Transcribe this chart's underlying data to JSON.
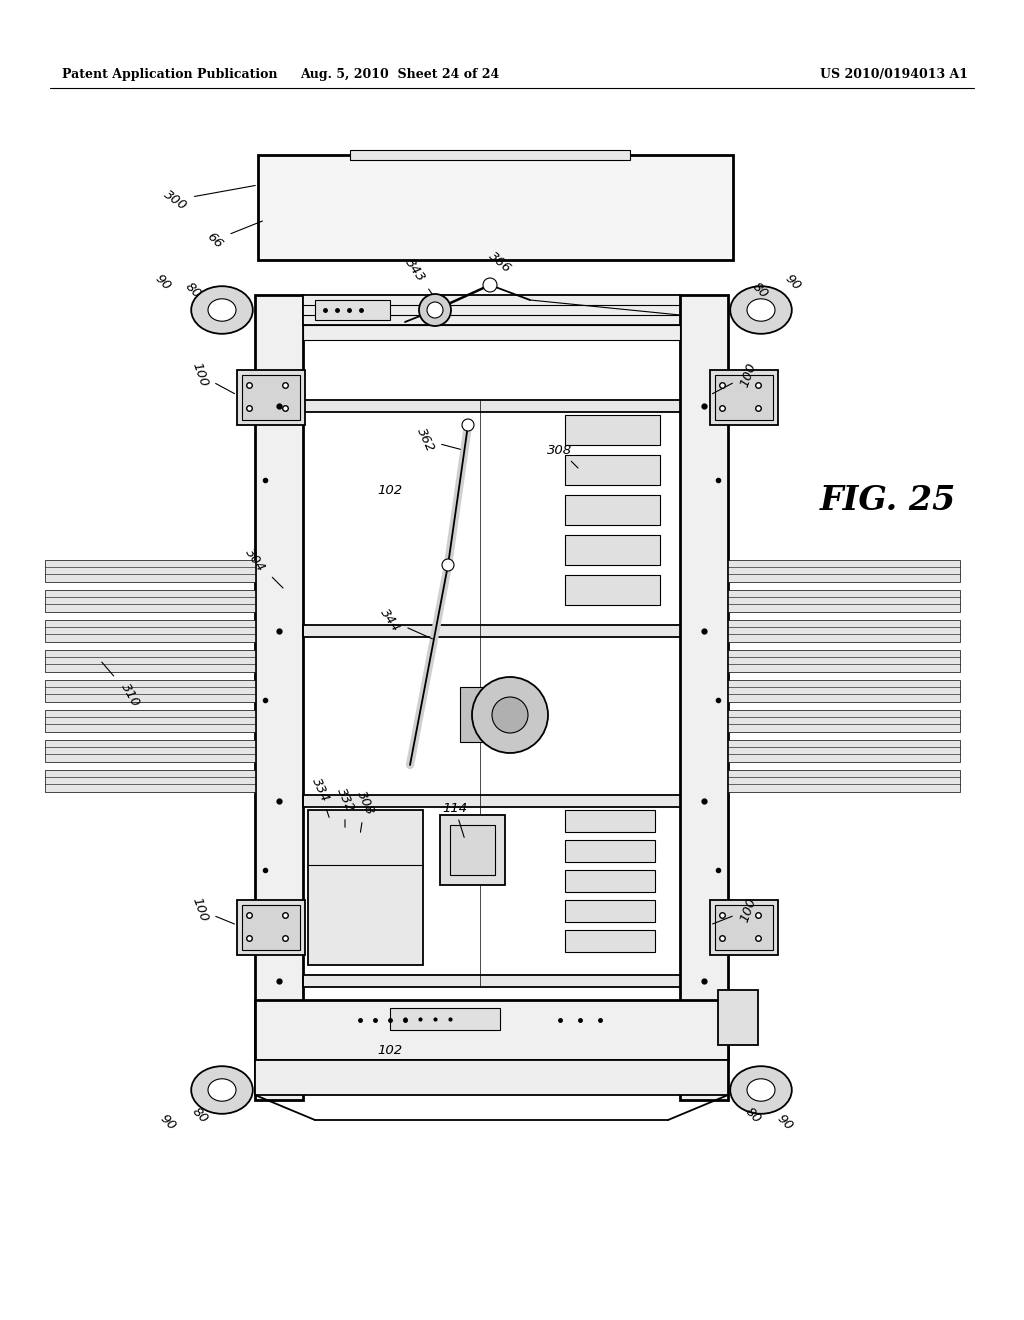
{
  "bg_color": "#ffffff",
  "line_color": "#000000",
  "header_left": "Patent Application Publication",
  "header_center": "Aug. 5, 2010  Sheet 24 of 24",
  "header_right": "US 2010/0194013 A1",
  "fig_label": "FIG. 25"
}
